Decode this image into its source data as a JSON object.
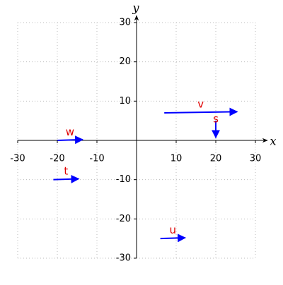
{
  "chart_data": {
    "type": "vector",
    "x_label": "x",
    "y_label": "y",
    "xlim": [
      -30,
      30
    ],
    "ylim": [
      -30,
      30
    ],
    "xticks": [
      -30,
      -20,
      -10,
      10,
      20,
      30
    ],
    "yticks": [
      -30,
      -20,
      -10,
      10,
      20,
      30
    ],
    "grid": true,
    "label_color": "#e00000",
    "series": [
      {
        "name": "v",
        "color": "#0000ff",
        "x": 7,
        "y": 7,
        "dx": 18.4,
        "dy": 0.3
      },
      {
        "name": "s",
        "color": "#0000ff",
        "x": 20,
        "y": 5,
        "dx": 0,
        "dy": -4.3
      },
      {
        "name": "w",
        "color": "#0000ff",
        "x": -20,
        "y": 0,
        "dx": 6.4,
        "dy": 0.2
      },
      {
        "name": "t",
        "color": "#0000ff",
        "x": -21,
        "y": -10,
        "dx": 6.4,
        "dy": 0.2
      },
      {
        "name": "u",
        "color": "#0000ff",
        "x": 6,
        "y": -25,
        "dx": 6.3,
        "dy": 0.2
      }
    ]
  }
}
